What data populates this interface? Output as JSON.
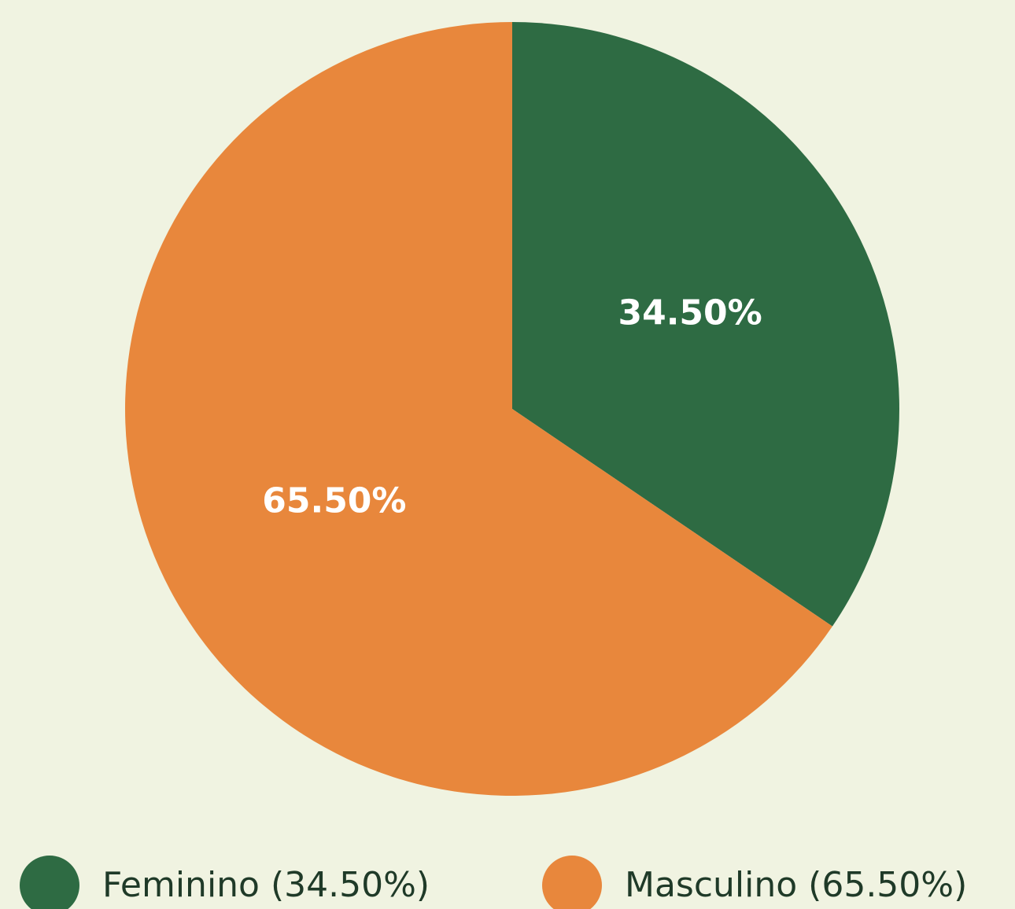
{
  "chart_data": {
    "type": "pie",
    "categories": [
      "Feminino (34.50%)",
      "Masculino (65.50%)"
    ],
    "values": [
      34.5,
      65.5
    ],
    "value_labels": [
      "34.50%",
      "65.50%"
    ],
    "colors": [
      "#2e6b43",
      "#e8873c"
    ],
    "legend": "bottom"
  }
}
